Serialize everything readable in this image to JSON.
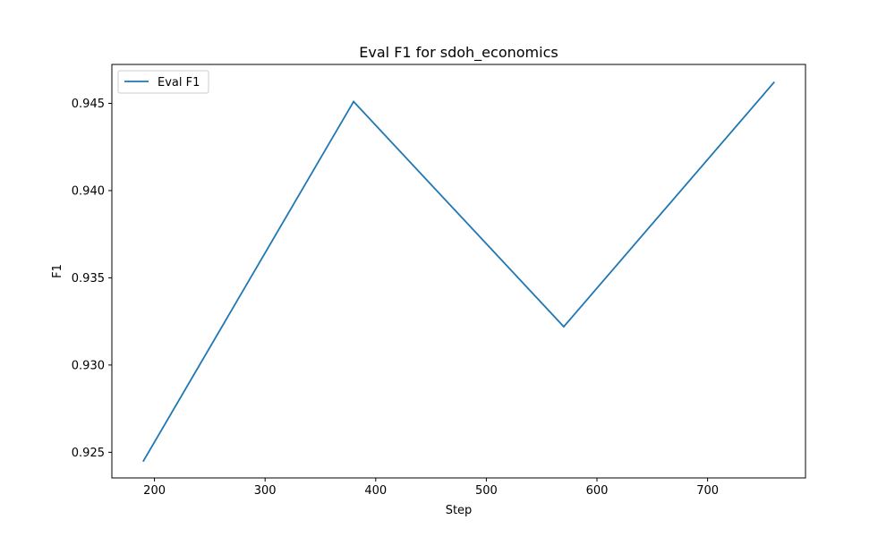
{
  "chart_data": {
    "type": "line",
    "title": "Eval F1 for sdoh_economics",
    "xlabel": "Step",
    "ylabel": "F1",
    "x": [
      190,
      380,
      570,
      760
    ],
    "series": [
      {
        "name": "Eval F1",
        "values": [
          0.9245,
          0.9451,
          0.9322,
          0.9462
        ],
        "color": "#1f77b4"
      }
    ],
    "xlim": [
      161.5,
      788.5
    ],
    "ylim": [
      0.92353,
      0.94723
    ],
    "xticks": [
      200,
      300,
      400,
      500,
      600,
      700
    ],
    "xtick_labels": [
      "200",
      "300",
      "400",
      "500",
      "600",
      "700"
    ],
    "yticks": [
      0.925,
      0.93,
      0.935,
      0.94,
      0.945
    ],
    "ytick_labels": [
      "0.925",
      "0.930",
      "0.935",
      "0.940",
      "0.945"
    ],
    "grid": false,
    "legend_position": "upper-left"
  }
}
